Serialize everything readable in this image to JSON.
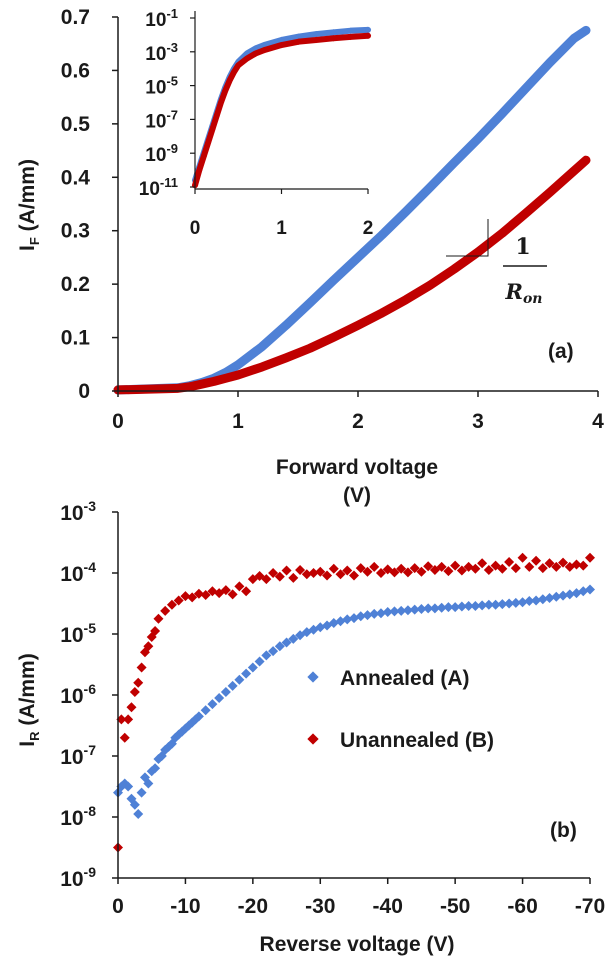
{
  "colors": {
    "annealed": "#4f81d6",
    "unannealed": "#c00000",
    "axis": "#1a1a1a"
  },
  "chart_data": [
    {
      "id": "a",
      "type": "scatter",
      "panel_label": "(a)",
      "xlabel_line1": "Forward voltage",
      "xlabel_line2": "(V)",
      "ylabel_main": "I",
      "ylabel_sub": "F",
      "ylabel_unit": " (A/mm)",
      "xlim": [
        0,
        4
      ],
      "ylim": [
        0,
        0.7
      ],
      "xticks": [
        0,
        1,
        2,
        3,
        4
      ],
      "yticks": [
        0,
        0.1,
        0.2,
        0.3,
        0.4,
        0.5,
        0.6,
        0.7
      ],
      "slope_annotation": {
        "numerator": "1",
        "denominator_main": "R",
        "denominator_sub": "on"
      },
      "series": [
        {
          "key": "annealed",
          "x": [
            0,
            0.5,
            0.6,
            0.7,
            0.8,
            0.9,
            1.0,
            1.2,
            1.4,
            1.6,
            1.8,
            2.0,
            2.2,
            2.4,
            2.6,
            2.8,
            3.0,
            3.2,
            3.4,
            3.6,
            3.8,
            3.9
          ],
          "y": [
            0.002,
            0.006,
            0.01,
            0.016,
            0.024,
            0.035,
            0.049,
            0.083,
            0.123,
            0.165,
            0.208,
            0.25,
            0.292,
            0.336,
            0.381,
            0.427,
            0.472,
            0.519,
            0.567,
            0.615,
            0.66,
            0.675
          ]
        },
        {
          "key": "unannealed",
          "x": [
            0,
            0.5,
            0.6,
            0.7,
            0.8,
            0.9,
            1.0,
            1.2,
            1.4,
            1.6,
            1.8,
            2.0,
            2.2,
            2.4,
            2.6,
            2.8,
            3.0,
            3.2,
            3.4,
            3.6,
            3.8,
            3.9
          ],
          "y": [
            0.002,
            0.005,
            0.008,
            0.013,
            0.018,
            0.024,
            0.03,
            0.045,
            0.062,
            0.08,
            0.101,
            0.123,
            0.146,
            0.171,
            0.198,
            0.228,
            0.26,
            0.295,
            0.333,
            0.372,
            0.412,
            0.432
          ]
        }
      ]
    },
    {
      "id": "a-inset",
      "type": "scatter",
      "scale": "log-y",
      "xlim": [
        0,
        2
      ],
      "ylim_exp": [
        -11,
        -1
      ],
      "xticks": [
        0,
        1,
        2
      ],
      "yticks_exp": [
        -1,
        -3,
        -5,
        -7,
        -9,
        -11
      ],
      "series": [
        {
          "key": "annealed",
          "x": [
            0,
            0.05,
            0.1,
            0.15,
            0.2,
            0.25,
            0.3,
            0.35,
            0.4,
            0.45,
            0.5,
            0.6,
            0.7,
            0.8,
            1.0,
            1.2,
            1.4,
            1.6,
            1.8,
            2.0
          ],
          "logy": [
            -10.6,
            -9.8,
            -9.0,
            -8.2,
            -7.4,
            -6.6,
            -5.8,
            -5.1,
            -4.5,
            -4.0,
            -3.6,
            -3.1,
            -2.8,
            -2.6,
            -2.3,
            -2.1,
            -1.95,
            -1.85,
            -1.75,
            -1.7
          ]
        },
        {
          "key": "unannealed",
          "x": [
            0,
            0.05,
            0.1,
            0.15,
            0.2,
            0.25,
            0.3,
            0.35,
            0.4,
            0.45,
            0.5,
            0.6,
            0.7,
            0.8,
            1.0,
            1.2,
            1.4,
            1.6,
            1.8,
            2.0
          ],
          "logy": [
            -10.9,
            -10.0,
            -9.2,
            -8.4,
            -7.6,
            -6.8,
            -6.0,
            -5.3,
            -4.7,
            -4.2,
            -3.8,
            -3.4,
            -3.1,
            -2.9,
            -2.6,
            -2.4,
            -2.3,
            -2.2,
            -2.12,
            -2.05
          ]
        }
      ]
    },
    {
      "id": "b",
      "type": "scatter",
      "scale": "log-y",
      "panel_label": "(b)",
      "xlabel": "Reverse voltage (V)",
      "ylabel_main": "I",
      "ylabel_sub": "R",
      "ylabel_unit": " (A/mm)",
      "xlim": [
        0,
        -70
      ],
      "ylim_exp": [
        -9,
        -3
      ],
      "xticks": [
        0,
        -10,
        -20,
        -30,
        -40,
        -50,
        -60,
        -70
      ],
      "yticks_exp": [
        -3,
        -4,
        -5,
        -6,
        -7,
        -8,
        -9
      ],
      "legend": [
        {
          "key": "annealed",
          "label": "Annealed (A)"
        },
        {
          "key": "unannealed",
          "label": "Unannealed (B)"
        }
      ],
      "legend_position": "center-right",
      "series": [
        {
          "key": "annealed",
          "x": [
            0,
            -0.5,
            -1,
            -1.5,
            -2,
            -2.5,
            -3,
            -3.5,
            -4,
            -4.5,
            -5,
            -5.5,
            -6,
            -6.5,
            -7,
            -7.5,
            -8,
            -8.5,
            -9,
            -9.5,
            -10,
            -10.5,
            -11,
            -11.5,
            -12,
            -13,
            -14,
            -15,
            -16,
            -17,
            -18,
            -19,
            -20,
            -21,
            -22,
            -23,
            -24,
            -25,
            -26,
            -27,
            -28,
            -29,
            -30,
            -31,
            -32,
            -33,
            -34,
            -35,
            -36,
            -37,
            -38,
            -39,
            -40,
            -41,
            -42,
            -43,
            -44,
            -45,
            -46,
            -47,
            -48,
            -49,
            -50,
            -51,
            -52,
            -53,
            -54,
            -55,
            -56,
            -57,
            -58,
            -59,
            -60,
            -61,
            -62,
            -63,
            -64,
            -65,
            -66,
            -67,
            -68,
            -69,
            -70
          ],
          "logy": [
            -7.6,
            -7.5,
            -7.45,
            -7.5,
            -7.7,
            -7.8,
            -7.95,
            -7.6,
            -7.35,
            -7.45,
            -7.25,
            -7.2,
            -7.05,
            -7.0,
            -6.9,
            -6.85,
            -6.8,
            -6.7,
            -6.65,
            -6.6,
            -6.55,
            -6.5,
            -6.45,
            -6.4,
            -6.35,
            -6.25,
            -6.15,
            -6.05,
            -5.95,
            -5.85,
            -5.75,
            -5.65,
            -5.55,
            -5.45,
            -5.35,
            -5.28,
            -5.2,
            -5.14,
            -5.08,
            -5.02,
            -4.97,
            -4.93,
            -4.89,
            -4.86,
            -4.82,
            -4.79,
            -4.76,
            -4.74,
            -4.71,
            -4.69,
            -4.67,
            -4.66,
            -4.64,
            -4.63,
            -4.62,
            -4.61,
            -4.6,
            -4.59,
            -4.58,
            -4.58,
            -4.57,
            -4.56,
            -4.56,
            -4.55,
            -4.54,
            -4.54,
            -4.53,
            -4.52,
            -4.52,
            -4.51,
            -4.5,
            -4.49,
            -4.48,
            -4.46,
            -4.45,
            -4.43,
            -4.41,
            -4.39,
            -4.37,
            -4.35,
            -4.33,
            -4.3,
            -4.27
          ]
        },
        {
          "key": "unannealed",
          "x": [
            0,
            -0.5,
            -1,
            -1.5,
            -2,
            -2.5,
            -3,
            -3.5,
            -4,
            -4.5,
            -5,
            -5.5,
            -6,
            -7,
            -8,
            -9,
            -10,
            -11,
            -12,
            -13,
            -14,
            -15,
            -16,
            -17,
            -18,
            -19,
            -20,
            -21,
            -22,
            -23,
            -24,
            -25,
            -26,
            -27,
            -28,
            -29,
            -30,
            -31,
            -32,
            -33,
            -34,
            -35,
            -36,
            -37,
            -38,
            -39,
            -40,
            -41,
            -42,
            -43,
            -44,
            -45,
            -46,
            -47,
            -48,
            -49,
            -50,
            -51,
            -52,
            -53,
            -54,
            -55,
            -56,
            -57,
            -58,
            -59,
            -60,
            -61,
            -62,
            -63,
            -64,
            -65,
            -66,
            -67,
            -68,
            -69,
            -70
          ],
          "logy": [
            -8.5,
            -6.4,
            -6.7,
            -6.4,
            -6.2,
            -5.95,
            -5.8,
            -5.55,
            -5.3,
            -5.2,
            -5.05,
            -4.95,
            -4.75,
            -4.62,
            -4.52,
            -4.45,
            -4.38,
            -4.4,
            -4.34,
            -4.36,
            -4.3,
            -4.33,
            -4.28,
            -4.35,
            -4.22,
            -4.3,
            -4.1,
            -4.05,
            -4.1,
            -4.0,
            -4.06,
            -3.96,
            -4.08,
            -3.95,
            -4.02,
            -4.0,
            -3.98,
            -4.04,
            -3.93,
            -4.02,
            -3.96,
            -4.04,
            -3.92,
            -3.98,
            -3.9,
            -4.0,
            -3.94,
            -3.99,
            -3.93,
            -3.99,
            -3.92,
            -3.98,
            -3.89,
            -3.95,
            -3.9,
            -3.97,
            -3.88,
            -3.96,
            -3.9,
            -3.93,
            -3.84,
            -3.95,
            -3.88,
            -3.93,
            -3.82,
            -3.92,
            -3.75,
            -3.9,
            -3.8,
            -3.92,
            -3.84,
            -3.9,
            -3.83,
            -3.9,
            -3.86,
            -3.88,
            -3.75
          ]
        }
      ]
    }
  ]
}
